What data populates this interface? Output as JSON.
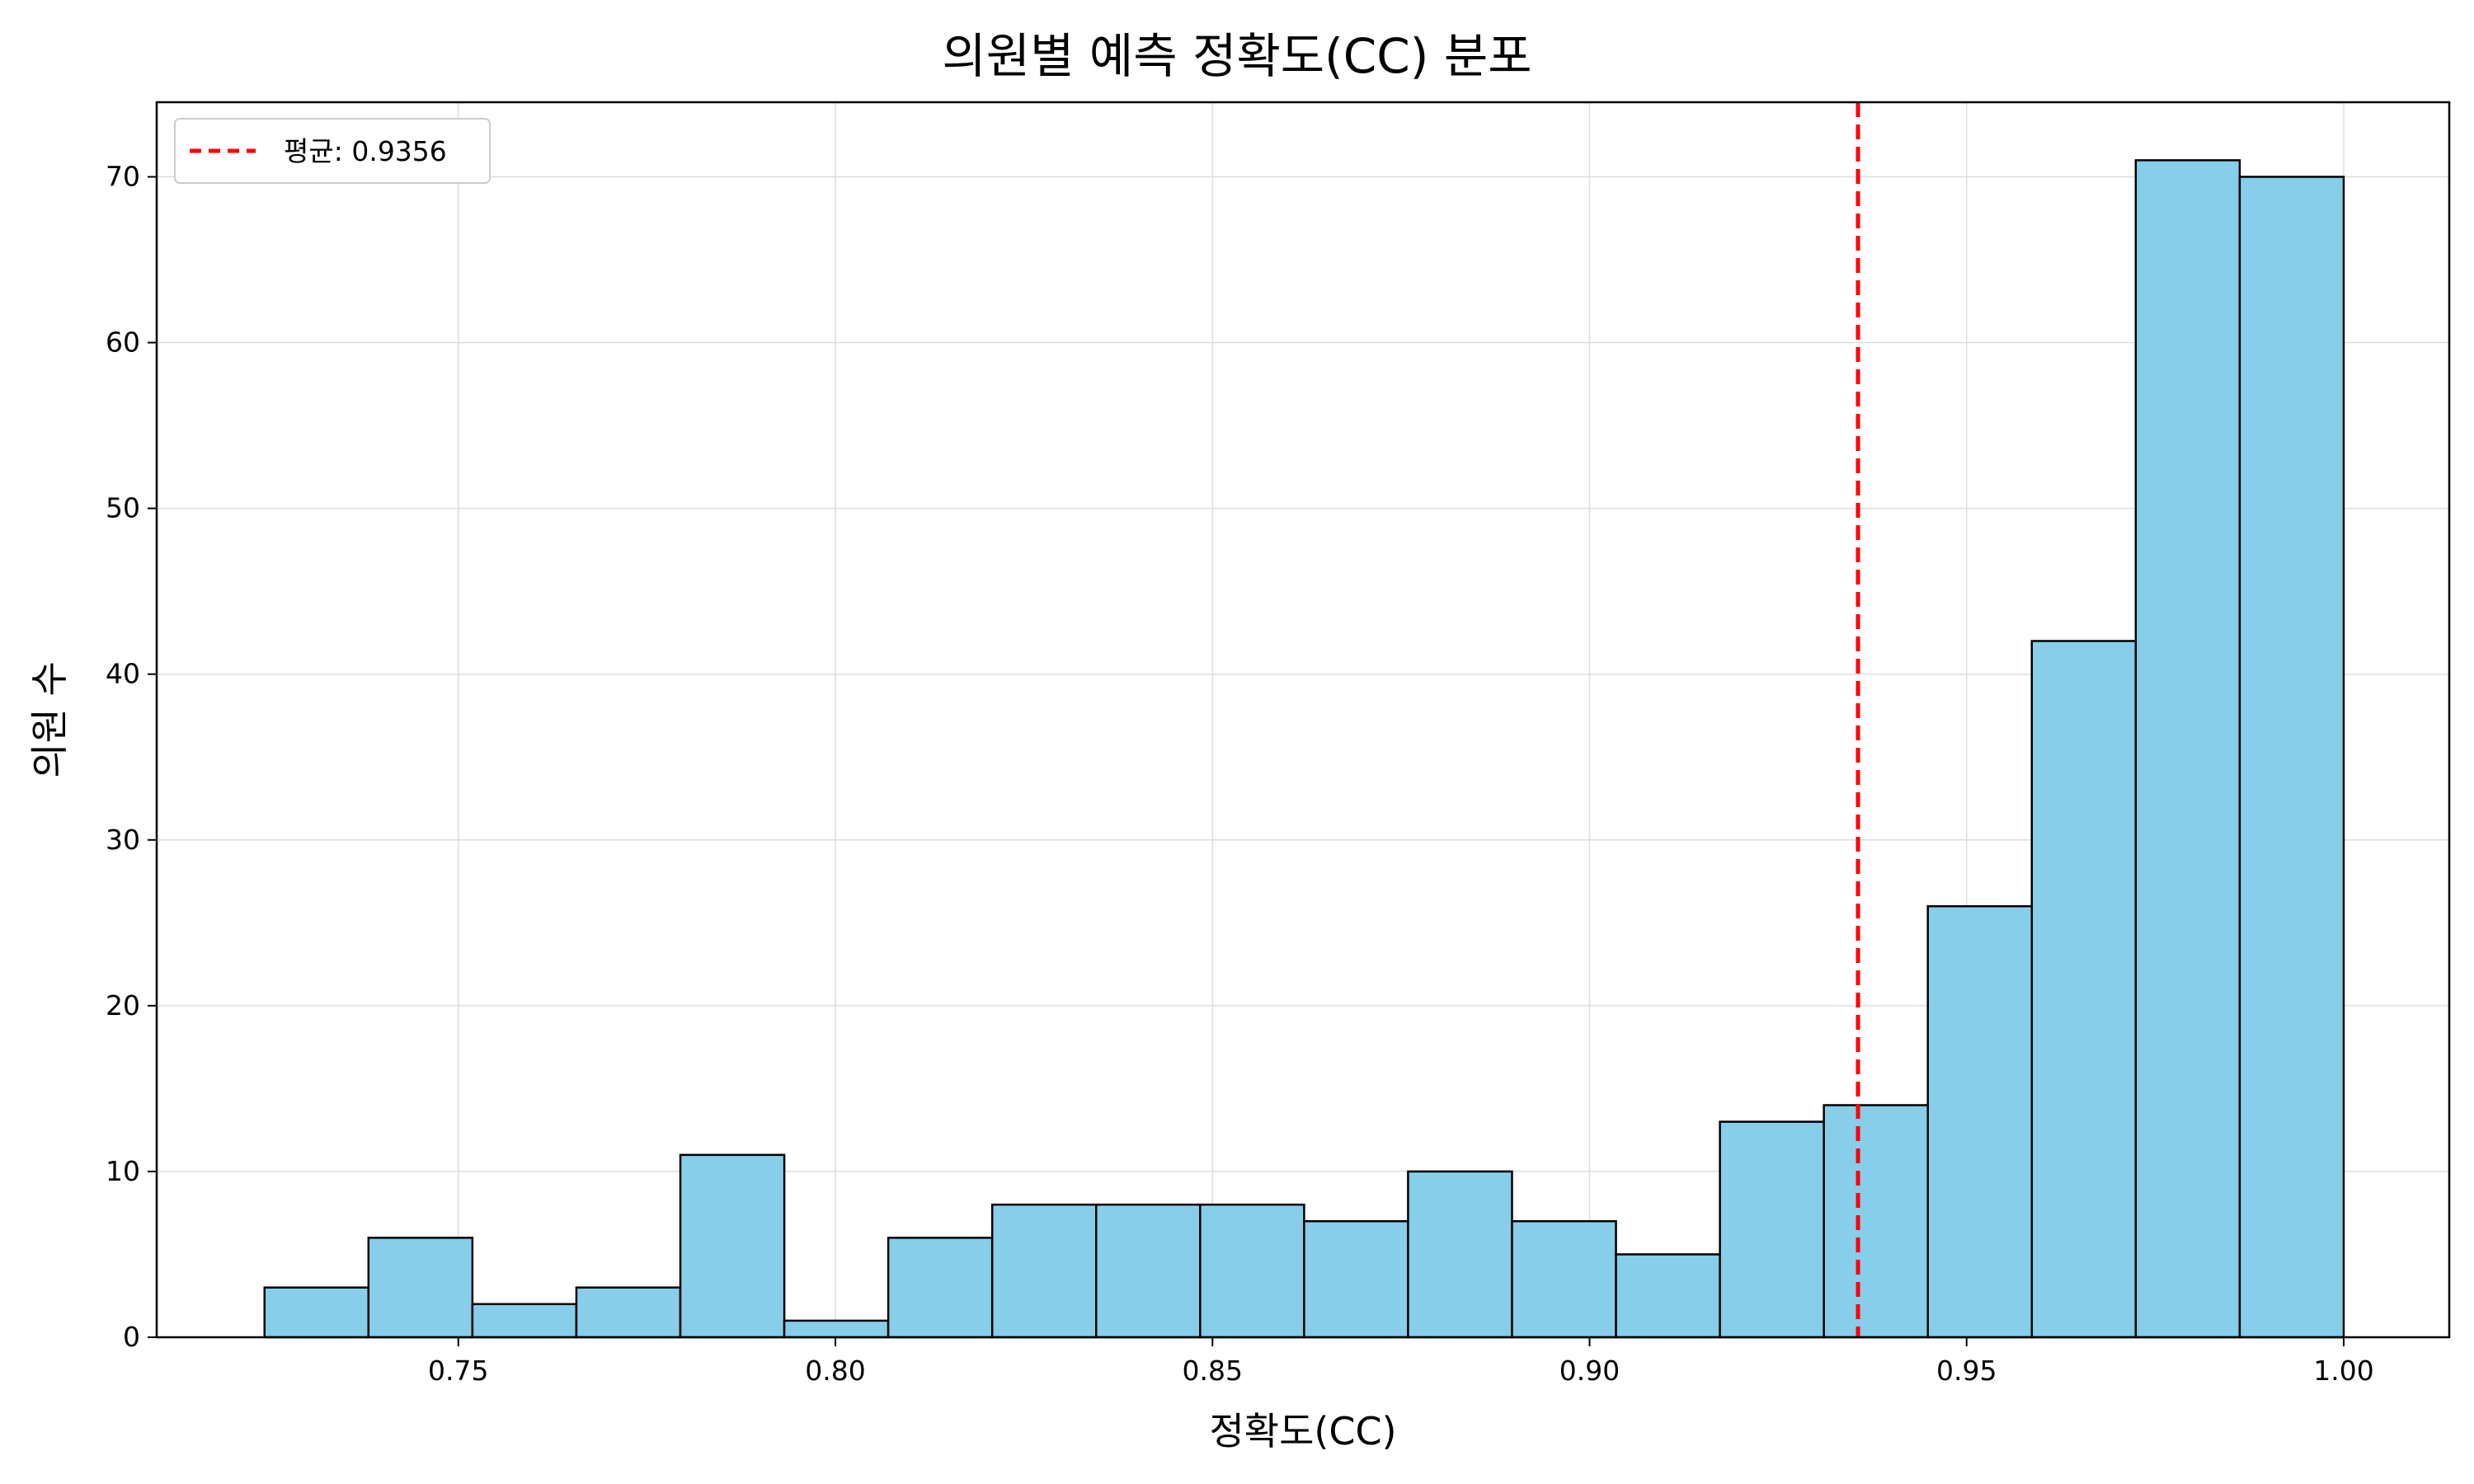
{
  "chart_data": {
    "type": "bar",
    "title": "의원별 예측 정확도(CC) 분포",
    "xlabel": "정확도(CC)",
    "ylabel": "의원 수",
    "xlim": [
      0.71,
      1.014
    ],
    "ylim": [
      0,
      74.5
    ],
    "grid": true,
    "legend_position": "top-left",
    "bar_color": "#87CEEB",
    "edge_color": "#000000",
    "x_ticks": [
      0.75,
      0.8,
      0.85,
      0.9,
      0.95,
      1.0
    ],
    "x_tick_labels": [
      "0.75",
      "0.80",
      "0.85",
      "0.90",
      "0.95",
      "1.00"
    ],
    "y_ticks": [
      0,
      10,
      20,
      30,
      40,
      50,
      60,
      70
    ],
    "y_tick_labels": [
      "0",
      "10",
      "20",
      "30",
      "40",
      "50",
      "60",
      "70"
    ],
    "bins": {
      "start": 0.7243,
      "end": 1.0,
      "counts": [
        3,
        6,
        2,
        3,
        11,
        1,
        6,
        8,
        8,
        8,
        7,
        10,
        7,
        5,
        13,
        14,
        26,
        42,
        71,
        70
      ]
    },
    "mean_line": {
      "value": 0.9356,
      "color": "#FF0000",
      "legend_label": "평균: 0.9356"
    }
  }
}
